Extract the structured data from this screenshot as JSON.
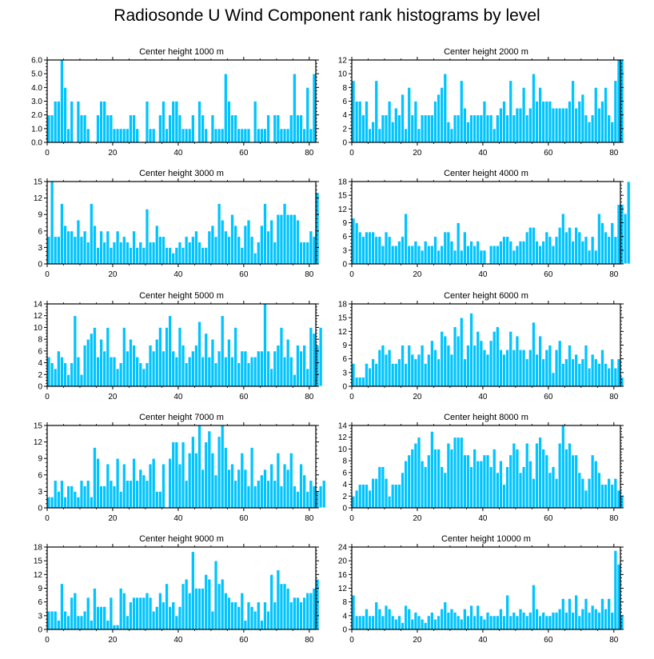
{
  "figure": {
    "title": "Radiosonde U Wind Component rank histograms by level"
  },
  "colors": {
    "bar": "#00c4ff",
    "bar_edge": "#ffffff",
    "axis": "#000000"
  },
  "chart_data": [
    {
      "type": "bar",
      "title": "Center height 1000 m",
      "xlim": [
        0,
        82
      ],
      "ylim": [
        0,
        6
      ],
      "xticks": [
        0,
        20,
        40,
        60,
        80
      ],
      "yticks": [
        "0.0",
        "1.0",
        "2.0",
        "3.0",
        "4.0",
        "5.0",
        "6.0"
      ],
      "values": [
        2,
        2,
        3,
        3,
        6,
        4,
        1,
        3,
        0,
        3,
        2,
        2,
        1,
        0,
        0,
        2,
        3,
        3,
        2,
        2,
        1,
        1,
        1,
        1,
        1,
        2,
        2,
        1,
        0,
        0,
        3,
        1,
        1,
        0,
        2,
        3,
        1,
        2,
        3,
        3,
        2,
        1,
        1,
        1,
        2,
        0,
        3,
        2,
        1,
        0,
        2,
        1,
        1,
        1,
        5,
        3,
        2,
        2,
        1,
        1,
        1,
        1,
        0,
        3,
        1,
        1,
        1,
        2,
        0,
        2,
        2,
        1,
        1,
        1,
        2,
        5,
        2,
        2,
        1,
        4,
        1,
        5,
        0
      ]
    },
    {
      "type": "bar",
      "title": "Center height 2000 m",
      "xlim": [
        0,
        82
      ],
      "ylim": [
        0,
        12
      ],
      "xticks": [
        0,
        20,
        40,
        60,
        80
      ],
      "yticks": [
        "0",
        "2",
        "4",
        "6",
        "8",
        "10",
        "12"
      ],
      "values": [
        9,
        6,
        6,
        4,
        6,
        2,
        3,
        9,
        2,
        4,
        4,
        6,
        3,
        5,
        4,
        7,
        2,
        8,
        4,
        6,
        2,
        4,
        4,
        4,
        4,
        6,
        7,
        8,
        10,
        3,
        2,
        4,
        4,
        9,
        5,
        3,
        4,
        4,
        4,
        4,
        6,
        4,
        4,
        2,
        4,
        5,
        6,
        4,
        9,
        4,
        5,
        5,
        8,
        4,
        5,
        10,
        6,
        8,
        6,
        6,
        6,
        5,
        5,
        5,
        5,
        5,
        6,
        9,
        5,
        6,
        7,
        4,
        3,
        4,
        8,
        5,
        6,
        8,
        4,
        3,
        9,
        12,
        12
      ]
    },
    {
      "type": "bar",
      "title": "Center height 3000 m",
      "xlim": [
        0,
        82
      ],
      "ylim": [
        0,
        15
      ],
      "xticks": [
        0,
        20,
        40,
        60,
        80
      ],
      "yticks": [
        "0",
        "3",
        "6",
        "9",
        "12",
        "15"
      ],
      "values": [
        5,
        15,
        5,
        5,
        11,
        7,
        6,
        6,
        5,
        8,
        5,
        6,
        4,
        11,
        7,
        3,
        6,
        4,
        6,
        3,
        4,
        6,
        4,
        5,
        4,
        3,
        6,
        3,
        4,
        3,
        10,
        4,
        4,
        7,
        5,
        5,
        3,
        3,
        2,
        3,
        4,
        3,
        5,
        4,
        5,
        6,
        4,
        3,
        3,
        6,
        7,
        5,
        11,
        8,
        6,
        5,
        9,
        7,
        5,
        3,
        7,
        8,
        5,
        2,
        4,
        7,
        11,
        6,
        8,
        4,
        9,
        9,
        11,
        9,
        9,
        9,
        8,
        4,
        4,
        4,
        6,
        5,
        13
      ]
    },
    {
      "type": "bar",
      "title": "Center height 4000 m",
      "xlim": [
        0,
        82
      ],
      "ylim": [
        0,
        18
      ],
      "xticks": [
        0,
        20,
        40,
        60,
        80
      ],
      "yticks": [
        "0",
        "3",
        "6",
        "9",
        "12",
        "15",
        "18"
      ],
      "values": [
        10,
        9,
        7,
        6,
        7,
        7,
        7,
        6,
        6,
        4,
        7,
        6,
        4,
        4,
        5,
        6,
        11,
        4,
        4,
        5,
        4,
        3,
        5,
        4,
        4,
        6,
        3,
        4,
        7,
        7,
        5,
        3,
        9,
        3,
        7,
        4,
        5,
        4,
        5,
        3,
        3,
        0,
        4,
        4,
        4,
        5,
        6,
        6,
        5,
        3,
        4,
        5,
        5,
        7,
        8,
        8,
        5,
        4,
        5,
        7,
        6,
        4,
        6,
        8,
        11,
        7,
        8,
        5,
        8,
        7,
        5,
        6,
        3,
        6,
        3,
        11,
        9,
        7,
        6,
        9,
        6,
        13,
        13,
        11,
        18
      ]
    },
    {
      "type": "bar",
      "title": "Center height 5000 m",
      "xlim": [
        0,
        82
      ],
      "ylim": [
        0,
        14
      ],
      "xticks": [
        0,
        20,
        40,
        60,
        80
      ],
      "yticks": [
        "0",
        "2",
        "4",
        "6",
        "8",
        "10",
        "12",
        "14"
      ],
      "values": [
        5,
        4,
        3,
        6,
        5,
        4,
        2,
        4,
        12,
        5,
        2,
        7,
        8,
        9,
        10,
        5,
        8,
        6,
        10,
        5,
        5,
        3,
        4,
        10,
        6,
        8,
        7,
        5,
        4,
        3,
        4,
        7,
        6,
        8,
        10,
        6,
        10,
        12,
        6,
        5,
        10,
        7,
        4,
        5,
        6,
        7,
        11,
        5,
        9,
        5,
        8,
        4,
        6,
        12,
        5,
        8,
        5,
        10,
        4,
        6,
        6,
        4,
        5,
        5,
        6,
        6,
        14,
        6,
        3,
        6,
        7,
        10,
        5,
        8,
        5,
        2,
        7,
        6,
        7,
        3,
        10,
        9,
        7,
        10
      ]
    },
    {
      "type": "bar",
      "title": "Center height 6000 m",
      "xlim": [
        0,
        82
      ],
      "ylim": [
        0,
        18
      ],
      "xticks": [
        0,
        20,
        40,
        60,
        80
      ],
      "yticks": [
        "0",
        "3",
        "6",
        "9",
        "12",
        "15",
        "18"
      ],
      "values": [
        5,
        2,
        2,
        2,
        5,
        4,
        6,
        5,
        8,
        9,
        7,
        8,
        5,
        5,
        6,
        9,
        5,
        9,
        7,
        6,
        7,
        9,
        5,
        7,
        10,
        8,
        6,
        12,
        11,
        9,
        7,
        13,
        11,
        15,
        6,
        9,
        16,
        9,
        12,
        10,
        8,
        7,
        10,
        12,
        13,
        8,
        7,
        8,
        12,
        8,
        11,
        8,
        8,
        6,
        8,
        14,
        7,
        11,
        6,
        8,
        9,
        3,
        8,
        10,
        5,
        6,
        9,
        6,
        7,
        5,
        6,
        9,
        4,
        7,
        6,
        5,
        8,
        5,
        4,
        6,
        4,
        6,
        2
      ]
    },
    {
      "type": "bar",
      "title": "Center height 7000 m",
      "xlim": [
        0,
        82
      ],
      "ylim": [
        0,
        15
      ],
      "xticks": [
        0,
        20,
        40,
        60,
        80
      ],
      "yticks": [
        "0",
        "3",
        "6",
        "9",
        "12",
        "15"
      ],
      "values": [
        2,
        2,
        5,
        3,
        5,
        2,
        4,
        4,
        3,
        2,
        5,
        4,
        5,
        2,
        11,
        9,
        4,
        4,
        8,
        5,
        4,
        9,
        3,
        8,
        5,
        5,
        9,
        5,
        7,
        6,
        5,
        8,
        9,
        3,
        3,
        8,
        0,
        9,
        12,
        12,
        8,
        12,
        5,
        10,
        13,
        10,
        15,
        7,
        12,
        14,
        10,
        6,
        13,
        15,
        11,
        7,
        8,
        5,
        7,
        10,
        7,
        4,
        11,
        4,
        5,
        6,
        7,
        5,
        8,
        5,
        10,
        4,
        8,
        7,
        10,
        4,
        3,
        8,
        6,
        3,
        5,
        4,
        3,
        4,
        5
      ]
    },
    {
      "type": "bar",
      "title": "Center height 8000 m",
      "xlim": [
        0,
        82
      ],
      "ylim": [
        0,
        14
      ],
      "xticks": [
        0,
        20,
        40,
        60,
        80
      ],
      "yticks": [
        "0",
        "2",
        "4",
        "6",
        "8",
        "10",
        "12",
        "14"
      ],
      "values": [
        2,
        3,
        4,
        4,
        4,
        3,
        5,
        5,
        7,
        7,
        5,
        2,
        4,
        4,
        4,
        6,
        8,
        9,
        10,
        11,
        12,
        8,
        7,
        9,
        13,
        10,
        10,
        7,
        6,
        11,
        10,
        12,
        12,
        12,
        9,
        9,
        7,
        10,
        8,
        8,
        9,
        9,
        7,
        10,
        6,
        8,
        4,
        7,
        9,
        11,
        10,
        6,
        7,
        11,
        8,
        5,
        11,
        12,
        10,
        9,
        6,
        7,
        5,
        11,
        14,
        10,
        11,
        9,
        9,
        6,
        5,
        3,
        5,
        9,
        8,
        6,
        4,
        4,
        5,
        4,
        5,
        3,
        2
      ]
    },
    {
      "type": "bar",
      "title": "Center height 9000 m",
      "xlim": [
        0,
        82
      ],
      "ylim": [
        0,
        18
      ],
      "xticks": [
        0,
        20,
        40,
        60,
        80
      ],
      "yticks": [
        "0",
        "3",
        "6",
        "9",
        "12",
        "15",
        "18"
      ],
      "values": [
        4,
        4,
        4,
        2,
        10,
        4,
        3,
        7,
        8,
        3,
        3,
        4,
        7,
        2,
        9,
        5,
        5,
        5,
        2,
        7,
        1,
        1,
        9,
        8,
        3,
        6,
        7,
        7,
        7,
        7,
        8,
        7,
        4,
        5,
        8,
        6,
        10,
        5,
        6,
        3,
        5,
        10,
        11,
        8,
        17,
        9,
        9,
        9,
        12,
        11,
        4,
        15,
        10,
        11,
        8,
        7,
        6,
        6,
        5,
        8,
        2,
        6,
        5,
        4,
        6,
        2,
        6,
        4,
        12,
        6,
        13,
        10,
        10,
        9,
        6,
        7,
        7,
        6,
        7,
        8,
        8,
        9,
        11
      ]
    },
    {
      "type": "bar",
      "title": "Center height 10000 m",
      "xlim": [
        0,
        82
      ],
      "ylim": [
        0,
        24
      ],
      "xticks": [
        0,
        20,
        40,
        60,
        80
      ],
      "yticks": [
        "0",
        "4",
        "8",
        "12",
        "16",
        "20",
        "24"
      ],
      "values": [
        10,
        4,
        4,
        4,
        6,
        4,
        4,
        8,
        6,
        4,
        7,
        6,
        4,
        3,
        4,
        2,
        7,
        6,
        3,
        5,
        4,
        3,
        2,
        4,
        5,
        3,
        4,
        6,
        8,
        5,
        6,
        5,
        4,
        3,
        6,
        4,
        7,
        4,
        7,
        4,
        3,
        5,
        4,
        4,
        4,
        6,
        4,
        10,
        4,
        5,
        4,
        6,
        5,
        4,
        5,
        13,
        6,
        4,
        5,
        4,
        4,
        5,
        5,
        6,
        9,
        5,
        9,
        5,
        10,
        4,
        6,
        9,
        5,
        7,
        6,
        5,
        9,
        6,
        9,
        5,
        23,
        19,
        4
      ]
    }
  ]
}
